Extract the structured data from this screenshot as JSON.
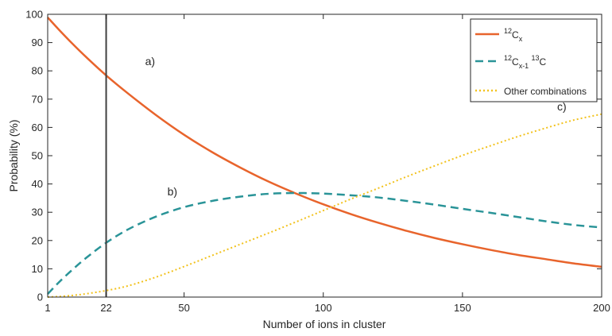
{
  "chart_data": {
    "type": "line",
    "xlabel": "Number of ions in cluster",
    "ylabel": "Probability (%)",
    "xlim": [
      1,
      200
    ],
    "ylim": [
      0,
      100
    ],
    "xticks": [
      1,
      22,
      50,
      100,
      150,
      200
    ],
    "yticks": [
      0,
      10,
      20,
      30,
      40,
      50,
      60,
      70,
      80,
      90,
      100
    ],
    "grid": false,
    "legend_position": "top-right",
    "vertical_marker": {
      "x": 22,
      "color": "#404040"
    },
    "x": [
      1,
      5,
      10,
      15,
      22,
      30,
      40,
      50,
      60,
      70,
      80,
      90,
      100,
      110,
      120,
      130,
      140,
      150,
      160,
      170,
      180,
      190,
      200
    ],
    "series": [
      {
        "key": "c12x",
        "legend": {
          "sup1": "12",
          "base1": "C",
          "sub1": "x",
          "sup2": "",
          "base2": ""
        },
        "color": "#e8642c",
        "dash": "solid",
        "values": [
          98.9,
          94.6,
          89.5,
          84.7,
          78.4,
          71.9,
          64.3,
          57.4,
          51.3,
          45.9,
          41.0,
          36.7,
          32.8,
          29.3,
          26.2,
          23.4,
          20.9,
          18.7,
          16.7,
          14.9,
          13.4,
          11.9,
          10.7
        ]
      },
      {
        "key": "c12x1c13",
        "legend": {
          "sup1": "12",
          "base1": "C",
          "sub1": "x-1",
          "sup2": "13",
          "base2": "C"
        },
        "color": "#2a9498",
        "dash": "dashed",
        "values": [
          1.1,
          5.2,
          9.8,
          14.0,
          19.2,
          24.0,
          28.5,
          31.8,
          34.0,
          35.5,
          36.5,
          36.8,
          36.6,
          36.0,
          35.2,
          34.0,
          32.7,
          31.2,
          29.8,
          28.3,
          26.8,
          25.5,
          24.6
        ]
      },
      {
        "key": "other",
        "legend": {
          "sup1": "",
          "base1": "Other combinations",
          "sub1": "",
          "sup2": "",
          "base2": ""
        },
        "color": "#f2c21d",
        "dash": "dotted",
        "values": [
          0.0,
          0.2,
          0.6,
          1.2,
          2.3,
          4.0,
          7.1,
          10.8,
          14.7,
          18.6,
          22.5,
          26.5,
          30.6,
          34.7,
          38.6,
          42.6,
          46.4,
          50.1,
          53.5,
          56.8,
          59.8,
          62.6,
          64.7
        ]
      }
    ],
    "annotations": [
      {
        "text": "a)",
        "x": 36,
        "y": 82
      },
      {
        "text": "b)",
        "x": 44,
        "y": 36
      },
      {
        "text": "c)",
        "x": 184,
        "y": 66
      }
    ]
  }
}
